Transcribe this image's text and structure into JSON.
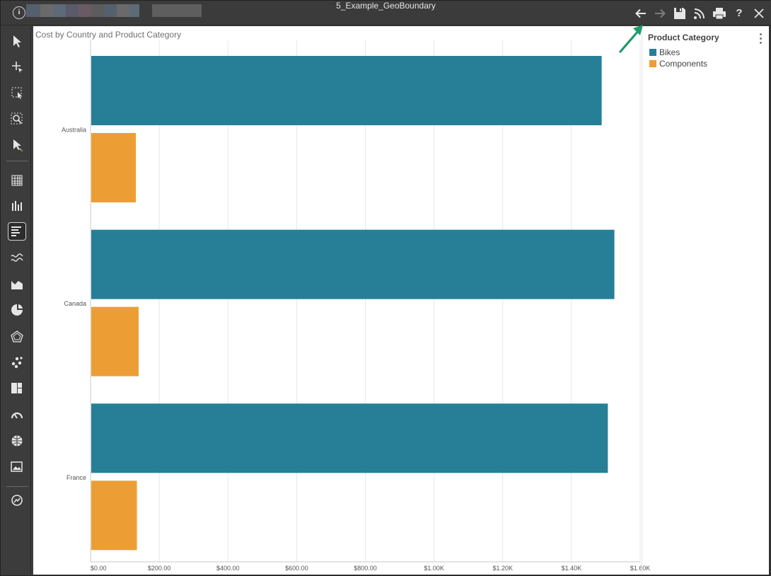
{
  "window": {
    "title": "5_Example_GeoBoundary",
    "blur_colors": [
      "#55606e",
      "#6a6a6a",
      "#5d6a78",
      "#5a5a6a",
      "#6a5a64",
      "#5c5c5c"
    ]
  },
  "titlebar_icons": [
    {
      "name": "back-arrow-icon",
      "glyph": "arrow-left"
    },
    {
      "name": "forward-arrow-icon",
      "glyph": "arrow-right"
    },
    {
      "name": "save-icon",
      "glyph": "floppy"
    },
    {
      "name": "rss-icon",
      "glyph": "rss"
    },
    {
      "name": "print-icon",
      "glyph": "printer"
    },
    {
      "name": "help-icon",
      "glyph": "?"
    },
    {
      "name": "close-icon",
      "glyph": "x"
    }
  ],
  "toolbar": {
    "tools": [
      "select-pointer-icon",
      "add-point-icon",
      "region-select-icon",
      "zoom-region-icon",
      "pointer-color-icon",
      "grid-chart-icon",
      "column-chart-icon",
      "bar-chart-icon",
      "line-chart-icon",
      "area-chart-icon",
      "pie-chart-icon",
      "radar-chart-icon",
      "scatter-chart-icon",
      "treemap-chart-icon",
      "gauge-chart-icon",
      "map-chart-icon",
      "image-chart-icon",
      "chart-settings-icon"
    ],
    "active_tool": "bar-chart-icon"
  },
  "legend": {
    "title": "Product Category",
    "items": [
      {
        "label": "Bikes",
        "color": "#267f96"
      },
      {
        "label": "Components",
        "color": "#ec9e35"
      }
    ]
  },
  "chart_data": {
    "type": "bar",
    "orientation": "horizontal",
    "title": "Cost by Country and Product Category",
    "categories": [
      "Australia",
      "Canada",
      "France"
    ],
    "series": [
      {
        "name": "Bikes",
        "color": "#267f96",
        "values": [
          1488,
          1525,
          1506
        ]
      },
      {
        "name": "Components",
        "color": "#ec9e35",
        "values": [
          132,
          140,
          135
        ]
      }
    ],
    "xlim": [
      0,
      1600
    ],
    "xticks": [
      "$0.00",
      "$200.00",
      "$400.00",
      "$600.00",
      "$800.00",
      "$1.00K",
      "$1.20K",
      "$1.40K",
      "$1.60K"
    ],
    "grid": true,
    "legend_position": "right"
  },
  "annotation": {
    "color": "#1f9a6a"
  }
}
